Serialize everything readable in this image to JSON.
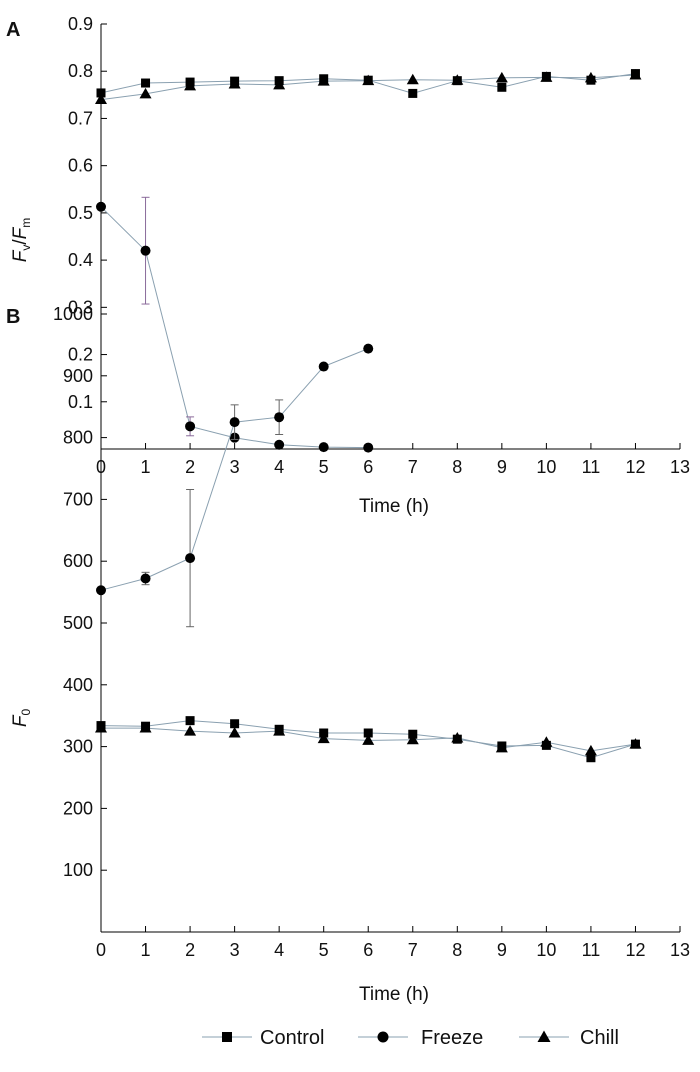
{
  "chart_data": [
    {
      "panel": "A",
      "type": "line",
      "title": "",
      "xlabel": "Time (h)",
      "ylabel": {
        "main": "F",
        "sub1": "v",
        "sep": "/",
        "main2": "F",
        "sub2": "m"
      },
      "xlim": [
        0,
        13
      ],
      "ylim": [
        0,
        0.9
      ],
      "xticks": [
        0,
        1,
        2,
        3,
        4,
        5,
        6,
        7,
        8,
        9,
        10,
        11,
        12,
        13
      ],
      "yticks": [
        0.1,
        0.2,
        0.3,
        0.4,
        0.5,
        0.6,
        0.7,
        0.8,
        0.9
      ],
      "ytick_labels": [
        "0.1",
        "0.2",
        "0.3",
        "0.4",
        "0.5",
        "0.6",
        "0.7",
        "0.8",
        "0.9"
      ],
      "grid": false,
      "series": [
        {
          "name": "Control",
          "marker": "square",
          "x": [
            0,
            1,
            2,
            3,
            4,
            5,
            6,
            7,
            8,
            9,
            10,
            11,
            12
          ],
          "y": [
            0.754,
            0.775,
            0.777,
            0.779,
            0.78,
            0.784,
            0.781,
            0.753,
            0.78,
            0.766,
            0.789,
            0.781,
            0.795
          ]
        },
        {
          "name": "Freeze",
          "marker": "circle",
          "x": [
            0,
            1,
            2,
            3,
            4,
            5,
            6
          ],
          "y": [
            0.513,
            0.42,
            0.048,
            0.024,
            0.009,
            0.004,
            0.003
          ],
          "err": [
            0,
            0.113,
            0.02,
            0,
            0,
            0,
            0
          ]
        },
        {
          "name": "Chill",
          "marker": "triangle",
          "x": [
            0,
            1,
            2,
            3,
            4,
            5,
            6,
            7,
            8,
            9,
            10,
            11,
            12
          ],
          "y": [
            0.74,
            0.752,
            0.769,
            0.773,
            0.771,
            0.779,
            0.78,
            0.782,
            0.781,
            0.786,
            0.787,
            0.786,
            0.792
          ]
        }
      ]
    },
    {
      "panel": "B",
      "type": "line",
      "title": "",
      "xlabel": "Time (h)",
      "ylabel": {
        "main": "F",
        "sub1": "0"
      },
      "xlim": [
        0,
        13
      ],
      "ylim": [
        0,
        1000
      ],
      "xticks": [
        0,
        1,
        2,
        3,
        4,
        5,
        6,
        7,
        8,
        9,
        10,
        11,
        12,
        13
      ],
      "yticks": [
        100,
        200,
        300,
        400,
        500,
        600,
        700,
        800,
        900,
        1000
      ],
      "ytick_labels": [
        "100",
        "200",
        "300",
        "400",
        "500",
        "600",
        "700",
        "800",
        "900",
        "1000"
      ],
      "grid": false,
      "series": [
        {
          "name": "Control",
          "marker": "square",
          "x": [
            0,
            1,
            2,
            3,
            4,
            5,
            6,
            7,
            8,
            9,
            10,
            11,
            12
          ],
          "y": [
            334,
            333,
            342,
            337,
            328,
            322,
            322,
            320,
            312,
            301,
            302,
            282,
            304
          ]
        },
        {
          "name": "Freeze",
          "marker": "circle",
          "x": [
            0,
            1,
            2,
            3,
            4,
            5,
            6
          ],
          "y": [
            553,
            572,
            605,
            825,
            833,
            915,
            944
          ],
          "err": [
            0,
            10,
            111,
            28,
            28,
            0,
            0
          ]
        },
        {
          "name": "Chill",
          "marker": "triangle",
          "x": [
            0,
            1,
            2,
            3,
            4,
            5,
            6,
            7,
            8,
            9,
            10,
            11,
            12
          ],
          "y": [
            330,
            330,
            325,
            322,
            325,
            313,
            310,
            311,
            314,
            298,
            307,
            293,
            304
          ]
        }
      ]
    }
  ],
  "legend": {
    "placement": "bottom",
    "items": [
      {
        "label": "Control",
        "marker": "square"
      },
      {
        "label": "Freeze",
        "marker": "circle"
      },
      {
        "label": "Chill",
        "marker": "triangle"
      }
    ]
  },
  "colors": {
    "line": "#8aa0b0",
    "marker": "#000000",
    "axis": "#000000",
    "errorbar_a": "#8a6a9a",
    "errorbar_b": "#666666"
  }
}
